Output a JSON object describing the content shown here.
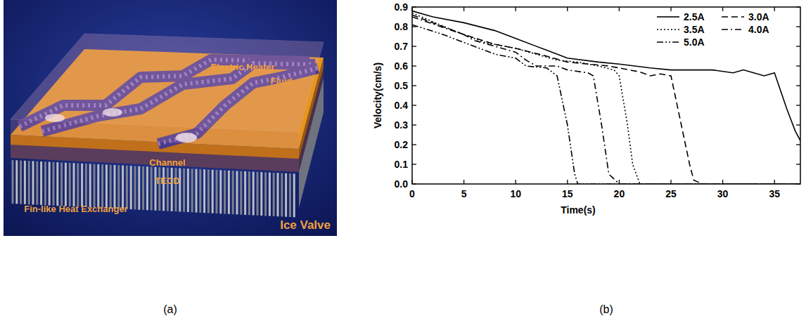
{
  "panel_labels": [
    "(a)",
    "(b)"
  ],
  "figure_a": {
    "labels": [
      "Electric Heater",
      "Fluid",
      "Channel",
      "TECD",
      "Fin-like Heat Exchanger"
    ],
    "title": "Ice Valve"
  },
  "chart_data": {
    "type": "line",
    "x_label": "Time(s)",
    "y_label": "Velocity(cm/s)",
    "xlim": [
      0,
      37.5
    ],
    "xticks": [
      0,
      5,
      10,
      15,
      20,
      25,
      30,
      35
    ],
    "ylim": [
      0,
      0.9
    ],
    "yticks": [
      {
        "value": 0,
        "label": "0.0"
      },
      0.1,
      0.2,
      0.3,
      0.4,
      0.5,
      0.6,
      0.7,
      0.8,
      0.9
    ],
    "legend": "upper right",
    "series": [
      {
        "name": "2.5A",
        "color": "#000000",
        "line_style": "solid",
        "x": [
          0,
          2,
          5,
          8,
          10,
          13,
          15,
          18,
          20,
          23,
          25,
          29,
          31,
          32,
          33,
          34,
          35,
          36.2,
          37,
          37.5
        ],
        "values": [
          0.88,
          0.85,
          0.82,
          0.78,
          0.74,
          0.68,
          0.64,
          0.62,
          0.61,
          0.59,
          0.58,
          0.58,
          0.565,
          0.58,
          0.565,
          0.55,
          0.565,
          0.38,
          0.27,
          0.22
        ]
      },
      {
        "name": "3.0A",
        "color": "#000000",
        "line_style": "dashed",
        "x": [
          0,
          2,
          5,
          8,
          10,
          13,
          15,
          17,
          19,
          20,
          22,
          23,
          24,
          25,
          26,
          26.8,
          27.2,
          28,
          37.5
        ],
        "values": [
          0.86,
          0.82,
          0.76,
          0.71,
          0.69,
          0.65,
          0.62,
          0.61,
          0.6,
          0.59,
          0.57,
          0.55,
          0.56,
          0.55,
          0.3,
          0.1,
          0.02,
          0,
          0
        ]
      },
      {
        "name": "3.5A",
        "color": "#000000",
        "line_style": "dotted",
        "x": [
          0,
          4,
          7,
          10,
          12,
          14,
          16,
          18,
          19.5,
          20,
          20.8,
          21.3,
          22,
          37.5
        ],
        "values": [
          0.87,
          0.78,
          0.72,
          0.69,
          0.66,
          0.63,
          0.62,
          0.6,
          0.58,
          0.55,
          0.3,
          0.1,
          0,
          0
        ]
      },
      {
        "name": "4.0A",
        "color": "#000000",
        "line_style": "dashdot",
        "x": [
          0,
          5,
          6,
          8,
          10,
          11,
          12,
          14,
          15,
          17,
          17.5,
          18.3,
          19,
          20,
          37.5
        ],
        "values": [
          0.85,
          0.76,
          0.73,
          0.7,
          0.67,
          0.63,
          0.6,
          0.6,
          0.58,
          0.565,
          0.55,
          0.3,
          0.05,
          0,
          0
        ]
      },
      {
        "name": "5.0A",
        "color": "#000000",
        "line_style": "dashdotdot",
        "x": [
          0,
          3,
          6,
          8,
          10,
          11,
          13,
          14,
          15,
          15.7,
          16,
          37.5
        ],
        "values": [
          0.81,
          0.76,
          0.7,
          0.66,
          0.64,
          0.6,
          0.59,
          0.55,
          0.3,
          0.05,
          0,
          0
        ]
      }
    ]
  }
}
